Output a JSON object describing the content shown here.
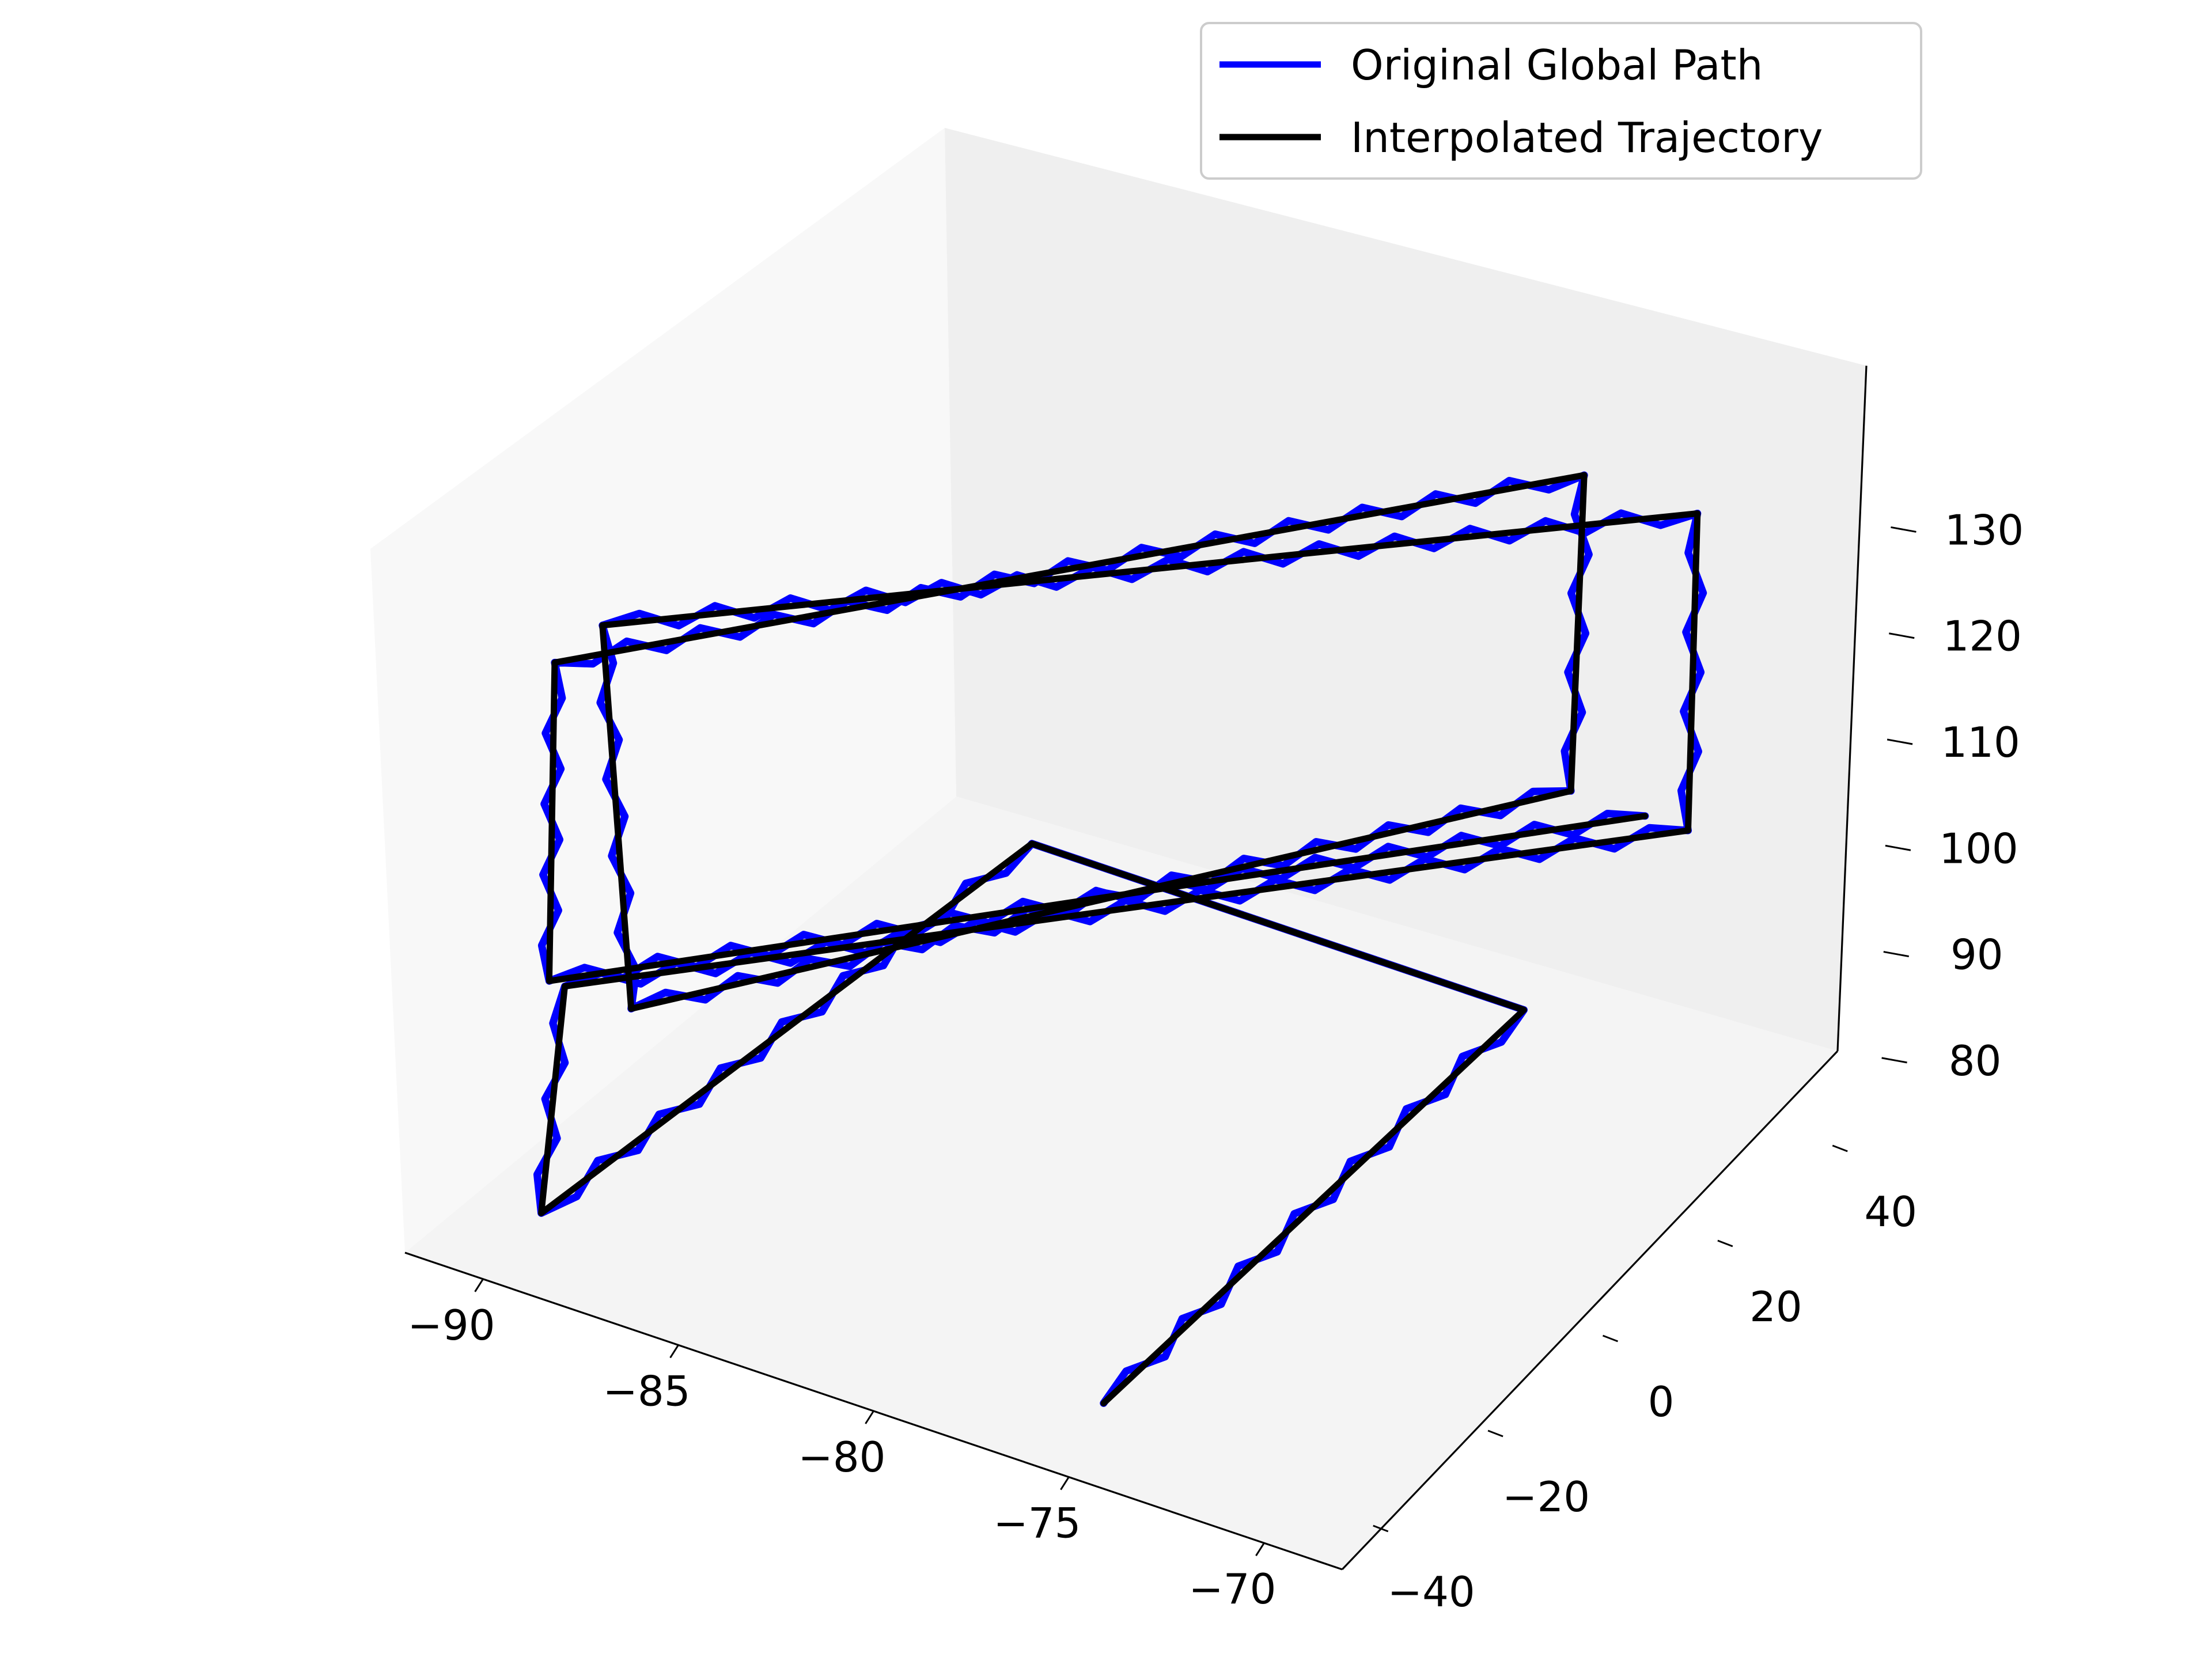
{
  "chart_data": {
    "type": "line",
    "subtype": "3d",
    "title": "",
    "xlabel": "",
    "ylabel": "",
    "zlabel": "",
    "xlim": [
      -92,
      -68
    ],
    "ylim": [
      -48,
      48
    ],
    "zlim": [
      75,
      138
    ],
    "x_ticks": [
      -90,
      -85,
      -80,
      -75,
      -70
    ],
    "y_ticks": [
      -40,
      -20,
      0,
      20,
      40
    ],
    "z_ticks": [
      80,
      90,
      100,
      110,
      120,
      130
    ],
    "x_tick_labels": [
      "−90",
      "−85",
      "−80",
      "−75",
      "−70"
    ],
    "y_tick_labels": [
      "−40",
      "−20",
      "0",
      "20",
      "40"
    ],
    "z_tick_labels": [
      "80",
      "90",
      "100",
      "110",
      "120",
      "130"
    ],
    "grid": false,
    "legend_position": "top-right",
    "series": [
      {
        "name": "Original Global Path",
        "color": "#0000ff",
        "waypoints": [
          [
            -75.3,
            -40.0,
            78.0
          ],
          [
            -76.3,
            40.0,
            78.0
          ],
          [
            -88.9,
            40.0,
            78.0
          ],
          [
            -89.7,
            -40.0,
            78.0
          ],
          [
            -89.2,
            -40.0,
            100.0
          ],
          [
            -72.2,
            40.0,
            100.0
          ],
          [
            -72.1,
            40.0,
            130.0
          ],
          [
            -88.4,
            -40.0,
            135.0
          ],
          [
            -87.5,
            -40.0,
            100.0
          ],
          [
            -75.2,
            40.0,
            100.0
          ],
          [
            -75.0,
            40.0,
            130.0
          ],
          [
            -89.6,
            -40.0,
            130.0
          ],
          [
            -89.6,
            -40.0,
            100.0
          ],
          [
            -73.3,
            40.0,
            100.0
          ]
        ]
      },
      {
        "name": "Interpolated Trajectory",
        "color": "#000000",
        "waypoints": [
          [
            -75.3,
            -40.0,
            78.0
          ],
          [
            -76.3,
            40.0,
            78.0
          ],
          [
            -88.9,
            40.0,
            78.0
          ],
          [
            -89.7,
            -40.0,
            78.0
          ],
          [
            -89.2,
            -40.0,
            100.0
          ],
          [
            -72.2,
            40.0,
            100.0
          ],
          [
            -72.1,
            40.0,
            130.0
          ],
          [
            -88.4,
            -40.0,
            135.0
          ],
          [
            -87.5,
            -40.0,
            100.0
          ],
          [
            -75.2,
            40.0,
            100.0
          ],
          [
            -75.0,
            40.0,
            130.0
          ],
          [
            -89.6,
            -40.0,
            130.0
          ],
          [
            -89.6,
            -40.0,
            100.0
          ],
          [
            -73.3,
            40.0,
            100.0
          ]
        ]
      }
    ]
  }
}
